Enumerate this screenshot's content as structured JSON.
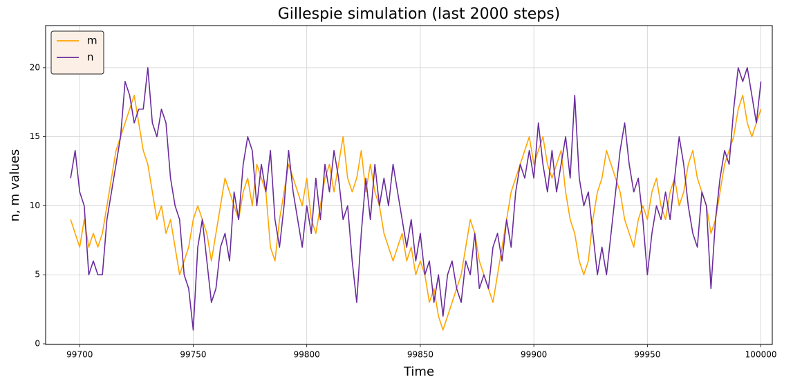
{
  "chart_data": {
    "type": "line",
    "title": "Gillespie simulation (last 2000 steps)",
    "x_label": "Time",
    "y_label": "n, m values",
    "x": [
      99696,
      99698,
      99700,
      99702,
      99704,
      99706,
      99708,
      99710,
      99712,
      99714,
      99716,
      99718,
      99720,
      99722,
      99724,
      99726,
      99728,
      99730,
      99732,
      99734,
      99736,
      99738,
      99740,
      99742,
      99744,
      99746,
      99748,
      99750,
      99752,
      99754,
      99756,
      99758,
      99760,
      99762,
      99764,
      99766,
      99768,
      99770,
      99772,
      99774,
      99776,
      99778,
      99780,
      99782,
      99784,
      99786,
      99788,
      99790,
      99792,
      99794,
      99796,
      99798,
      99800,
      99802,
      99804,
      99806,
      99808,
      99810,
      99812,
      99814,
      99816,
      99818,
      99820,
      99822,
      99824,
      99826,
      99828,
      99830,
      99832,
      99834,
      99836,
      99838,
      99840,
      99842,
      99844,
      99846,
      99848,
      99850,
      99852,
      99854,
      99856,
      99858,
      99860,
      99862,
      99864,
      99866,
      99868,
      99870,
      99872,
      99874,
      99876,
      99878,
      99880,
      99882,
      99884,
      99886,
      99888,
      99890,
      99892,
      99894,
      99896,
      99898,
      99900,
      99902,
      99904,
      99906,
      99908,
      99910,
      99912,
      99914,
      99916,
      99918,
      99920,
      99922,
      99924,
      99926,
      99928,
      99930,
      99932,
      99934,
      99936,
      99938,
      99940,
      99942,
      99944,
      99946,
      99948,
      99950,
      99952,
      99954,
      99956,
      99958,
      99960,
      99962,
      99964,
      99966,
      99968,
      99970,
      99972,
      99974,
      99976,
      99978,
      99980,
      99982,
      99984,
      99986,
      99988,
      99990,
      99992,
      99994,
      99996,
      99998,
      100000
    ],
    "series": [
      {
        "name": "m",
        "color": "#ffa500",
        "values": [
          9,
          8,
          7,
          9,
          7,
          8,
          7,
          8,
          10,
          12,
          14,
          15,
          16,
          17,
          18,
          16,
          14,
          13,
          11,
          9,
          10,
          8,
          9,
          7,
          5,
          6,
          7,
          9,
          10,
          9,
          8,
          6,
          8,
          10,
          12,
          11,
          10,
          9,
          11,
          12,
          10,
          13,
          12,
          11,
          7,
          6,
          9,
          11,
          13,
          12,
          11,
          10,
          12,
          9,
          8,
          10,
          12,
          13,
          11,
          13,
          15,
          12,
          11,
          12,
          14,
          11,
          13,
          11,
          10,
          8,
          7,
          6,
          7,
          8,
          6,
          7,
          5,
          6,
          5,
          3,
          4,
          2,
          1,
          2,
          3,
          4,
          5,
          7,
          9,
          8,
          6,
          5,
          4,
          3,
          5,
          7,
          9,
          11,
          12,
          13,
          14,
          15,
          13,
          14,
          15,
          13,
          12,
          13,
          14,
          11,
          9,
          8,
          6,
          5,
          6,
          9,
          11,
          12,
          14,
          13,
          12,
          11,
          9,
          8,
          7,
          9,
          10,
          9,
          11,
          12,
          10,
          9,
          11,
          12,
          10,
          11,
          13,
          14,
          12,
          11,
          10,
          8,
          9,
          11,
          13,
          14,
          15,
          17,
          18,
          16,
          15,
          16,
          17
        ]
      },
      {
        "name": "n",
        "color": "#6a2c9c",
        "values": [
          12,
          14,
          11,
          10,
          5,
          6,
          5,
          5,
          9,
          11,
          13,
          15,
          19,
          18,
          16,
          17,
          17,
          20,
          16,
          15,
          17,
          16,
          12,
          10,
          9,
          5,
          4,
          1,
          7,
          9,
          6,
          3,
          4,
          7,
          8,
          6,
          11,
          9,
          13,
          15,
          14,
          10,
          13,
          11,
          14,
          9,
          7,
          10,
          14,
          11,
          9,
          7,
          10,
          8,
          12,
          9,
          13,
          11,
          14,
          12,
          9,
          10,
          6,
          3,
          8,
          12,
          9,
          13,
          10,
          12,
          10,
          13,
          11,
          9,
          7,
          9,
          6,
          8,
          5,
          6,
          3,
          5,
          2,
          5,
          6,
          4,
          3,
          6,
          5,
          8,
          4,
          5,
          4,
          7,
          8,
          6,
          9,
          7,
          11,
          13,
          12,
          14,
          12,
          16,
          13,
          11,
          14,
          11,
          13,
          15,
          12,
          18,
          12,
          10,
          11,
          8,
          5,
          7,
          5,
          8,
          11,
          14,
          16,
          13,
          11,
          12,
          9,
          5,
          8,
          10,
          9,
          11,
          9,
          12,
          15,
          13,
          10,
          8,
          7,
          11,
          10,
          4,
          9,
          12,
          14,
          13,
          17,
          20,
          19,
          20,
          18,
          16,
          19
        ]
      }
    ],
    "xlim": [
      99685,
      100005
    ],
    "ylim": [
      -0.05,
      23.05
    ],
    "xticks": [
      99700,
      99750,
      99800,
      99850,
      99900,
      99950,
      100000
    ],
    "yticks": [
      0,
      5,
      10,
      15,
      20
    ],
    "grid": true,
    "legend": "upper left"
  }
}
